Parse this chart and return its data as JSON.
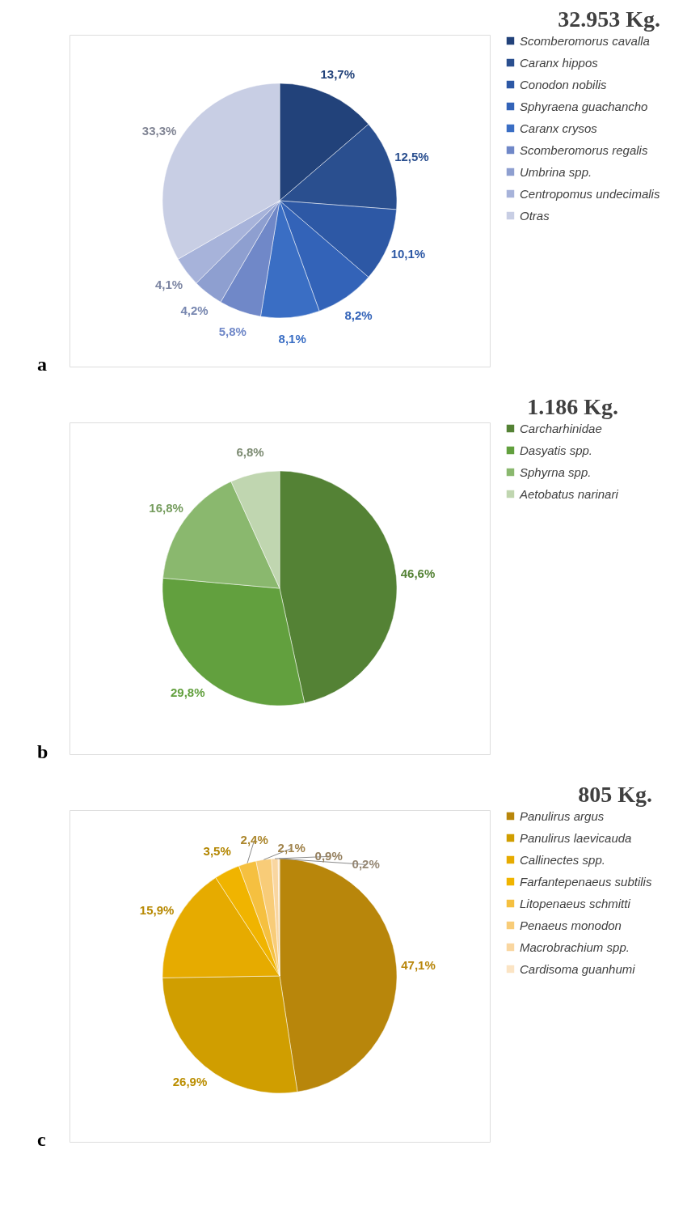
{
  "chart_data": [
    {
      "type": "pie",
      "title": "32.953 Kg.",
      "categories": [
        "Scomberomorus cavalla",
        "Caranx hippos",
        "Conodon nobilis",
        "Sphyraena guachancho",
        "Caranx crysos",
        "Scomberomorus regalis",
        "Umbrina spp.",
        "Centropomus undecimalis",
        "Otras"
      ],
      "values": [
        13.7,
        12.5,
        10.1,
        8.2,
        8.1,
        5.8,
        4.2,
        4.1,
        33.3
      ],
      "value_labels": [
        "13,7%",
        "12,5%",
        "10,1%",
        "8,2%",
        "8,1%",
        "5,8%",
        "4,2%",
        "4,1%",
        "33,3%"
      ],
      "colors": [
        "#22427a",
        "#2a4f8f",
        "#2d58a5",
        "#3363b8",
        "#3a6ec4",
        "#7088c8",
        "#8e9fd0",
        "#a7b3da",
        "#c8cee4"
      ],
      "legend": "right",
      "annotations": [
        "a"
      ]
    },
    {
      "type": "pie",
      "title": "1.186 Kg.",
      "categories": [
        "Carcharhinidae",
        "Dasyatis spp.",
        "Sphyrna spp.",
        "Aetobatus narinari"
      ],
      "values": [
        46.6,
        29.8,
        16.8,
        6.8
      ],
      "value_labels": [
        "46,6%",
        "29,8%",
        "16,8%",
        "6,8%"
      ],
      "colors": [
        "#548235",
        "#62a03e",
        "#8ab86e",
        "#c0d6b0"
      ],
      "legend": "right",
      "annotations": [
        "b"
      ]
    },
    {
      "type": "pie",
      "title": "805 Kg.",
      "categories": [
        "Panulirus argus",
        "Panulirus laevicauda",
        "Callinectes spp.",
        "Farfantepenaeus subtilis",
        "Litopenaeus schmitti",
        "Penaeus monodon",
        "Macrobrachium spp.",
        "Cardisoma guanhumi"
      ],
      "values": [
        47.1,
        26.9,
        15.9,
        3.5,
        2.4,
        2.1,
        0.9,
        0.2
      ],
      "value_labels": [
        "47,1%",
        "26,9%",
        "15,9%",
        "3,5%",
        "2,4%",
        "2,1%",
        "0,9%",
        "0,2%"
      ],
      "colors": [
        "#b8860b",
        "#d09e00",
        "#e6ab00",
        "#f0b400",
        "#f5c040",
        "#f8cc78",
        "#f9d6a0",
        "#fbe4c4"
      ],
      "legend": "right",
      "annotations": [
        "c"
      ]
    }
  ]
}
